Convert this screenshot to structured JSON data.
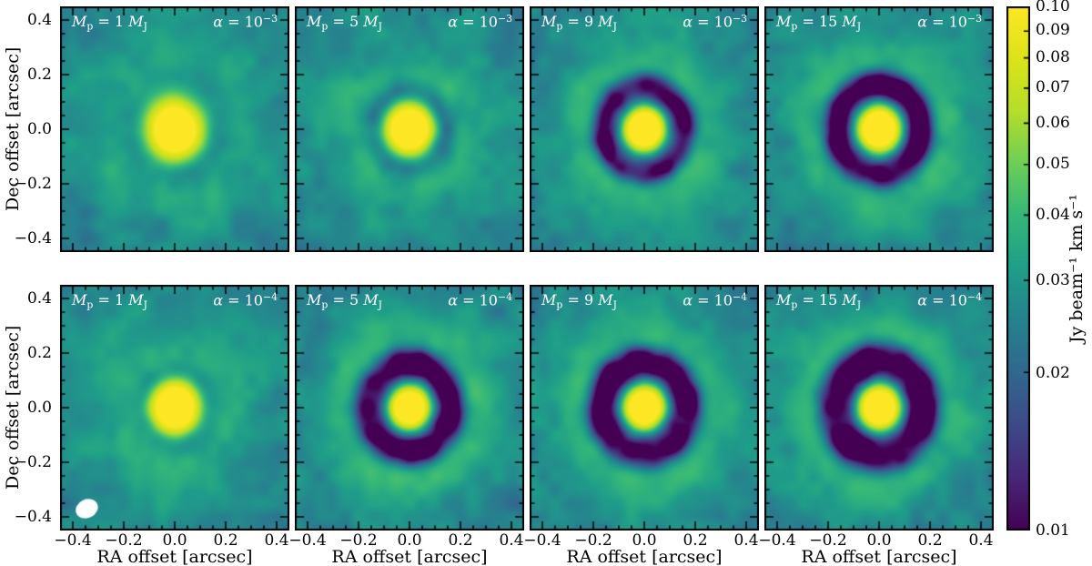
{
  "figure": {
    "background": "#ffffff",
    "type_note": "2x4 grid of synthetic disk moment maps"
  },
  "shared": {
    "mass_symbol": "M",
    "mass_sub": "p",
    "mass_unit_sub": "J",
    "alpha_symbol": "α",
    "alpha_eq": " = 10"
  },
  "axes": {
    "x_label": "RA offset [arcsec]",
    "y_label": "Dec offset [arcsec]",
    "x_ticks": [
      "−0.4",
      "−0.2",
      "0.0",
      "0.2",
      "0.4"
    ],
    "y_ticks": [
      "0.4",
      "0.2",
      "0.0",
      "−0.2",
      "−0.4"
    ],
    "x_tick_values": [
      -0.4,
      -0.2,
      0.0,
      0.2,
      0.4
    ],
    "y_tick_values": [
      0.4,
      0.2,
      0.0,
      -0.2,
      -0.4
    ],
    "range": [
      -0.45,
      0.45
    ],
    "minor_tick_step": 0.05
  },
  "colorbar": {
    "label": "Jy beam⁻¹ km s⁻¹",
    "ticks": [
      "0.10",
      "0.09",
      "0.08",
      "0.07",
      "0.06",
      "0.05",
      "0.04",
      "0.03",
      "0.02",
      "0.01"
    ],
    "tick_values": [
      0.1,
      0.09,
      0.08,
      0.07,
      0.06,
      0.05,
      0.04,
      0.03,
      0.02,
      0.01
    ],
    "scale": "log",
    "vmin": 0.01,
    "vmax": 0.1,
    "colormap": "viridis"
  },
  "chart_data": {
    "type": "heatmap",
    "description_visible": "Grid of simulated line-intensity maps: columns vary planet mass (1, 5, 9, 15 Jupiter masses), rows vary viscosity alpha (1e-3 top, 1e-4 bottom). Each map: bright central peak, annular gap carved by the planet, teal background with correlated noise.",
    "value_units": "Jy beam⁻¹ km s⁻¹",
    "field_of_view_arcsec": [
      -0.45,
      0.45
    ],
    "render": {
      "floor": 0.01,
      "vmax": 0.1,
      "background": 0.031,
      "noise_amp": 0.004,
      "vignette": 0.02,
      "rim_width": 0.05
    },
    "beam": {
      "x": -0.345,
      "y": -0.37,
      "rx": 0.045,
      "ry": 0.034,
      "angle_deg": -25
    },
    "panels": [
      {
        "mass_mj": 1,
        "alpha": 0.001,
        "mass_text": " = 1 ",
        "alpha_exp": "−3",
        "profile": {
          "peak": 0.17,
          "peak_sigma": 0.065,
          "gap_depth": 0.004,
          "gap_radius": 0.16,
          "gap_width": 0.04,
          "gap_power": 2,
          "rim_amp": 0.002,
          "rim_radius": 0.26
        },
        "has_beam": false,
        "seed": 11
      },
      {
        "mass_mj": 5,
        "alpha": 0.001,
        "mass_text": " = 5 ",
        "alpha_exp": "−3",
        "profile": {
          "peak": 0.18,
          "peak_sigma": 0.058,
          "gap_depth": 0.016,
          "gap_radius": 0.125,
          "gap_width": 0.038,
          "gap_power": 2,
          "rim_amp": 0.005,
          "rim_radius": 0.22
        },
        "has_beam": false,
        "seed": 22
      },
      {
        "mass_mj": 9,
        "alpha": 0.001,
        "mass_text": " = 9 ",
        "alpha_exp": "−3",
        "profile": {
          "peak": 0.18,
          "peak_sigma": 0.052,
          "gap_depth": 0.025,
          "gap_radius": 0.135,
          "gap_width": 0.052,
          "gap_power": 4,
          "rim_amp": 0.007,
          "rim_radius": 0.25
        },
        "has_beam": false,
        "seed": 33
      },
      {
        "mass_mj": 15,
        "alpha": 0.001,
        "mass_text": " = 15 ",
        "alpha_exp": "−3",
        "profile": {
          "peak": 0.18,
          "peak_sigma": 0.052,
          "gap_depth": 0.026,
          "gap_radius": 0.145,
          "gap_width": 0.056,
          "gap_power": 4,
          "rim_amp": 0.007,
          "rim_radius": 0.27
        },
        "has_beam": false,
        "seed": 44
      },
      {
        "mass_mj": 1,
        "alpha": 0.0001,
        "mass_text": " = 1 ",
        "alpha_exp": "−4",
        "profile": {
          "peak": 0.18,
          "peak_sigma": 0.06,
          "gap_depth": 0.013,
          "gap_radius": 0.12,
          "gap_width": 0.036,
          "gap_power": 2,
          "rim_amp": 0.004,
          "rim_radius": 0.21
        },
        "has_beam": true,
        "seed": 55
      },
      {
        "mass_mj": 5,
        "alpha": 0.0001,
        "mass_text": " = 5 ",
        "alpha_exp": "−4",
        "profile": {
          "peak": 0.18,
          "peak_sigma": 0.05,
          "gap_depth": 0.026,
          "gap_radius": 0.14,
          "gap_width": 0.06,
          "gap_power": 4,
          "rim_amp": 0.007,
          "rim_radius": 0.27
        },
        "has_beam": false,
        "seed": 66
      },
      {
        "mass_mj": 9,
        "alpha": 0.0001,
        "mass_text": " = 9 ",
        "alpha_exp": "−4",
        "profile": {
          "peak": 0.18,
          "peak_sigma": 0.05,
          "gap_depth": 0.026,
          "gap_radius": 0.145,
          "gap_width": 0.062,
          "gap_power": 4,
          "rim_amp": 0.007,
          "rim_radius": 0.275
        },
        "has_beam": false,
        "seed": 77
      },
      {
        "mass_mj": 15,
        "alpha": 0.0001,
        "mass_text": " = 15 ",
        "alpha_exp": "−4",
        "profile": {
          "peak": 0.18,
          "peak_sigma": 0.05,
          "gap_depth": 0.027,
          "gap_radius": 0.155,
          "gap_width": 0.066,
          "gap_power": 4,
          "rim_amp": 0.007,
          "rim_radius": 0.29
        },
        "has_beam": false,
        "seed": 88
      }
    ]
  }
}
